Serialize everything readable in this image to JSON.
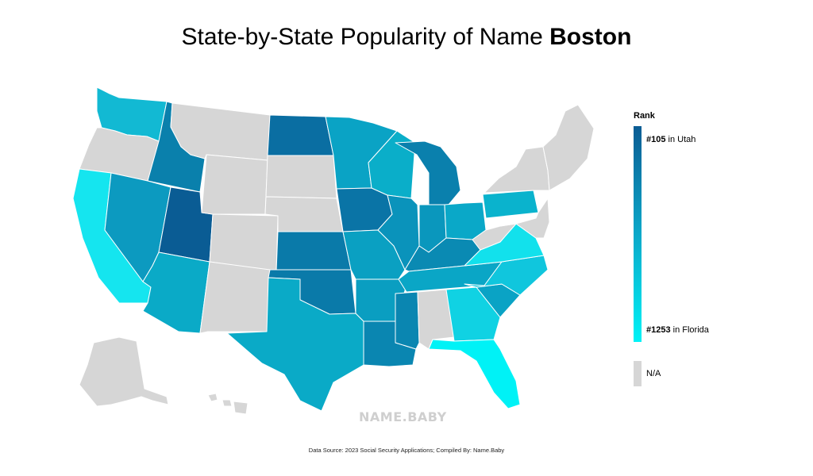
{
  "title": {
    "prefix": "State-by-State Popularity of Name ",
    "name": "Boston"
  },
  "legend": {
    "title": "Rank",
    "top": {
      "rank": "#105",
      "suffix": " in Utah"
    },
    "bottom": {
      "rank": "#1253",
      "suffix": " in Florida"
    },
    "na_label": "N/A",
    "colors": {
      "top": "#0a5c94",
      "mid": "#0aa8c9",
      "bottom": "#00f2f6",
      "na": "#d6d6d6"
    }
  },
  "watermark": "NAME.BABY",
  "source": "Data Source: 2023 Social Security Applications; Compiled By: Name.Baby",
  "states": [
    {
      "code": "WA",
      "color": "#12b9d3"
    },
    {
      "code": "OR",
      "color": "#d6d6d6"
    },
    {
      "code": "CA",
      "color": "#15e5ef"
    },
    {
      "code": "ID",
      "color": "#0a80ac"
    },
    {
      "code": "NV",
      "color": "#0c9ac0"
    },
    {
      "code": "UT",
      "color": "#0a5c94"
    },
    {
      "code": "AZ",
      "color": "#0aaac7"
    },
    {
      "code": "MT",
      "color": "#d6d6d6"
    },
    {
      "code": "WY",
      "color": "#d6d6d6"
    },
    {
      "code": "CO",
      "color": "#d6d6d6"
    },
    {
      "code": "NM",
      "color": "#d6d6d6"
    },
    {
      "code": "ND",
      "color": "#0a6ea2"
    },
    {
      "code": "SD",
      "color": "#d6d6d6"
    },
    {
      "code": "NE",
      "color": "#d6d6d6"
    },
    {
      "code": "KS",
      "color": "#0a7aa9"
    },
    {
      "code": "OK",
      "color": "#0a7aa9"
    },
    {
      "code": "TX",
      "color": "#0aaac7"
    },
    {
      "code": "MN",
      "color": "#0aa3c5"
    },
    {
      "code": "IA",
      "color": "#0a74a6"
    },
    {
      "code": "MO",
      "color": "#0aa0c2"
    },
    {
      "code": "AR",
      "color": "#0a9ec1"
    },
    {
      "code": "LA",
      "color": "#0a86b1"
    },
    {
      "code": "WI",
      "color": "#0aaec9"
    },
    {
      "code": "IL",
      "color": "#0a93bb"
    },
    {
      "code": "MI",
      "color": "#0a80ad"
    },
    {
      "code": "IN",
      "color": "#0a97bd"
    },
    {
      "code": "OH",
      "color": "#0aa8c8"
    },
    {
      "code": "KY",
      "color": "#0a8ab3"
    },
    {
      "code": "TN",
      "color": "#0aa6c6"
    },
    {
      "code": "MS",
      "color": "#0a86b1"
    },
    {
      "code": "AL",
      "color": "#d6d6d6"
    },
    {
      "code": "GA",
      "color": "#10d2e3"
    },
    {
      "code": "FL",
      "color": "#00f2f6"
    },
    {
      "code": "SC",
      "color": "#0aa3c5"
    },
    {
      "code": "NC",
      "color": "#10c6dd"
    },
    {
      "code": "VA",
      "color": "#12e1ec"
    },
    {
      "code": "WV",
      "color": "#d6d6d6"
    },
    {
      "code": "PA",
      "color": "#0ab3cd"
    },
    {
      "code": "NY",
      "color": "#d6d6d6"
    },
    {
      "code": "NE-states",
      "color": "#d6d6d6"
    },
    {
      "code": "MD-DE-NJ",
      "color": "#d6d6d6"
    },
    {
      "code": "AK",
      "color": "#d6d6d6"
    },
    {
      "code": "HI",
      "color": "#d6d6d6"
    }
  ]
}
